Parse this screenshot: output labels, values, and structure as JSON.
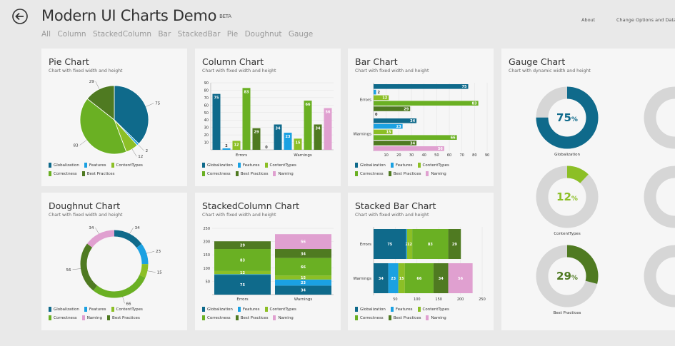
{
  "app": {
    "title": "Modern UI Charts Demo",
    "badge": "BETA",
    "about": "About",
    "options": "Change Options and Data"
  },
  "nav": [
    "All",
    "Column",
    "StackedColumn",
    "Bar",
    "StackedBar",
    "Pie",
    "Doughnut",
    "Gauge"
  ],
  "colors": {
    "Globalization": "#0f6a8b",
    "Features": "#1ba1e2",
    "ContentTypes": "#8cbf26",
    "Correctness": "#6ab023",
    "Best Practices": "#4f7a21",
    "Naming": "#e0a0d0",
    "gaugeTrack": "#d6d6d6"
  },
  "legend_labels": {
    "five": [
      "Globalization",
      "Features",
      "ContentTypes",
      "Correctness",
      "Best Practices"
    ],
    "six": [
      "Globalization",
      "Features",
      "ContentTypes",
      "Correctness",
      "Best Practices",
      "Naming"
    ],
    "six_doughnut": [
      "Globalization",
      "Features",
      "ContentTypes",
      "Correctness",
      "Naming",
      "Best Practices"
    ]
  },
  "panels": {
    "pie": {
      "title": "Pie Chart",
      "subtitle": "Chart with fixed width and height"
    },
    "column": {
      "title": "Column Chart",
      "subtitle": "Chart with fixed width and height"
    },
    "bar": {
      "title": "Bar Chart",
      "subtitle": "Chart with fixed width and height"
    },
    "gauge": {
      "title": "Gauge Chart",
      "subtitle": "Chart with dynamic width and height"
    },
    "doughnut": {
      "title": "Doughnut Chart",
      "subtitle": "Chart with fixed width and height"
    },
    "stackedcolumn": {
      "title": "StackedColumn Chart",
      "subtitle": "Chart with fixed width and height"
    },
    "stackedbar": {
      "title": "Stacked Bar Chart",
      "subtitle": "Chart with fixed width and height"
    }
  },
  "chart_data": [
    {
      "id": "pie",
      "type": "pie",
      "title": "Pie Chart",
      "slices": [
        {
          "name": "Globalization",
          "value": 75
        },
        {
          "name": "Features",
          "value": 2
        },
        {
          "name": "ContentTypes",
          "value": 12
        },
        {
          "name": "Correctness",
          "value": 83
        },
        {
          "name": "Best Practices",
          "value": 29
        }
      ]
    },
    {
      "id": "column",
      "type": "bar",
      "title": "Column Chart",
      "categories": [
        "Errors",
        "Warnings"
      ],
      "series": [
        {
          "name": "Globalization",
          "values": [
            75,
            34
          ]
        },
        {
          "name": "Features",
          "values": [
            2,
            23
          ]
        },
        {
          "name": "ContentTypes",
          "values": [
            12,
            15
          ]
        },
        {
          "name": "Correctness",
          "values": [
            83,
            66
          ]
        },
        {
          "name": "Best Practices",
          "values": [
            29,
            34
          ]
        },
        {
          "name": "Naming",
          "values": [
            0,
            56
          ]
        }
      ],
      "ylim": [
        0,
        90
      ],
      "yticks": [
        10,
        20,
        30,
        40,
        50,
        60,
        70,
        80,
        90
      ]
    },
    {
      "id": "bar",
      "type": "bar",
      "title": "Bar Chart",
      "orientation": "horizontal",
      "categories": [
        "Errors",
        "Warnings"
      ],
      "series": [
        {
          "name": "Globalization",
          "values": [
            75,
            34
          ]
        },
        {
          "name": "Features",
          "values": [
            2,
            23
          ]
        },
        {
          "name": "ContentTypes",
          "values": [
            12,
            15
          ]
        },
        {
          "name": "Correctness",
          "values": [
            83,
            66
          ]
        },
        {
          "name": "Best Practices",
          "values": [
            29,
            34
          ]
        },
        {
          "name": "Naming",
          "values": [
            0,
            56
          ]
        }
      ],
      "xlim": [
        0,
        90
      ],
      "xticks": [
        10,
        20,
        30,
        40,
        50,
        60,
        70,
        80,
        90
      ]
    },
    {
      "id": "gauge",
      "type": "pie",
      "title": "Gauge Chart",
      "gauges": [
        {
          "name": "Globalization",
          "percent": 75,
          "color": "#0f6a8b"
        },
        {
          "name": "ContentTypes",
          "percent": 12,
          "color": "#8cbf26"
        },
        {
          "name": "Best Practices",
          "percent": 29,
          "color": "#4f7a21"
        }
      ]
    },
    {
      "id": "doughnut",
      "type": "pie",
      "title": "Doughnut Chart",
      "slices": [
        {
          "name": "Globalization",
          "value": 34
        },
        {
          "name": "Features",
          "value": 23
        },
        {
          "name": "ContentTypes",
          "value": 15
        },
        {
          "name": "Correctness",
          "value": 66
        },
        {
          "name": "Best Practices",
          "value": 56
        },
        {
          "name": "Naming",
          "value": 34
        }
      ]
    },
    {
      "id": "stackedcolumn",
      "type": "bar",
      "title": "StackedColumn Chart",
      "stacked": true,
      "categories": [
        "Errors",
        "Warnings"
      ],
      "series": [
        {
          "name": "Globalization",
          "values": [
            75,
            34
          ]
        },
        {
          "name": "Features",
          "values": [
            2,
            23
          ]
        },
        {
          "name": "ContentTypes",
          "values": [
            12,
            15
          ]
        },
        {
          "name": "Correctness",
          "values": [
            83,
            66
          ]
        },
        {
          "name": "Best Practices",
          "values": [
            29,
            34
          ]
        },
        {
          "name": "Naming",
          "values": [
            0,
            56
          ]
        }
      ],
      "ylim": [
        0,
        250
      ],
      "yticks": [
        50,
        100,
        150,
        200,
        250
      ]
    },
    {
      "id": "stackedbar",
      "type": "bar",
      "title": "Stacked Bar Chart",
      "stacked": true,
      "orientation": "horizontal",
      "categories": [
        "Errors",
        "Warnings"
      ],
      "series": [
        {
          "name": "Globalization",
          "values": [
            75,
            34
          ]
        },
        {
          "name": "Features",
          "values": [
            2,
            23
          ]
        },
        {
          "name": "ContentTypes",
          "values": [
            12,
            15
          ]
        },
        {
          "name": "Correctness",
          "values": [
            83,
            66
          ]
        },
        {
          "name": "Best Practices",
          "values": [
            29,
            34
          ]
        },
        {
          "name": "Naming",
          "values": [
            0,
            56
          ]
        }
      ],
      "xlim": [
        0,
        250
      ],
      "xticks": [
        50,
        100,
        150,
        200,
        250
      ]
    }
  ]
}
